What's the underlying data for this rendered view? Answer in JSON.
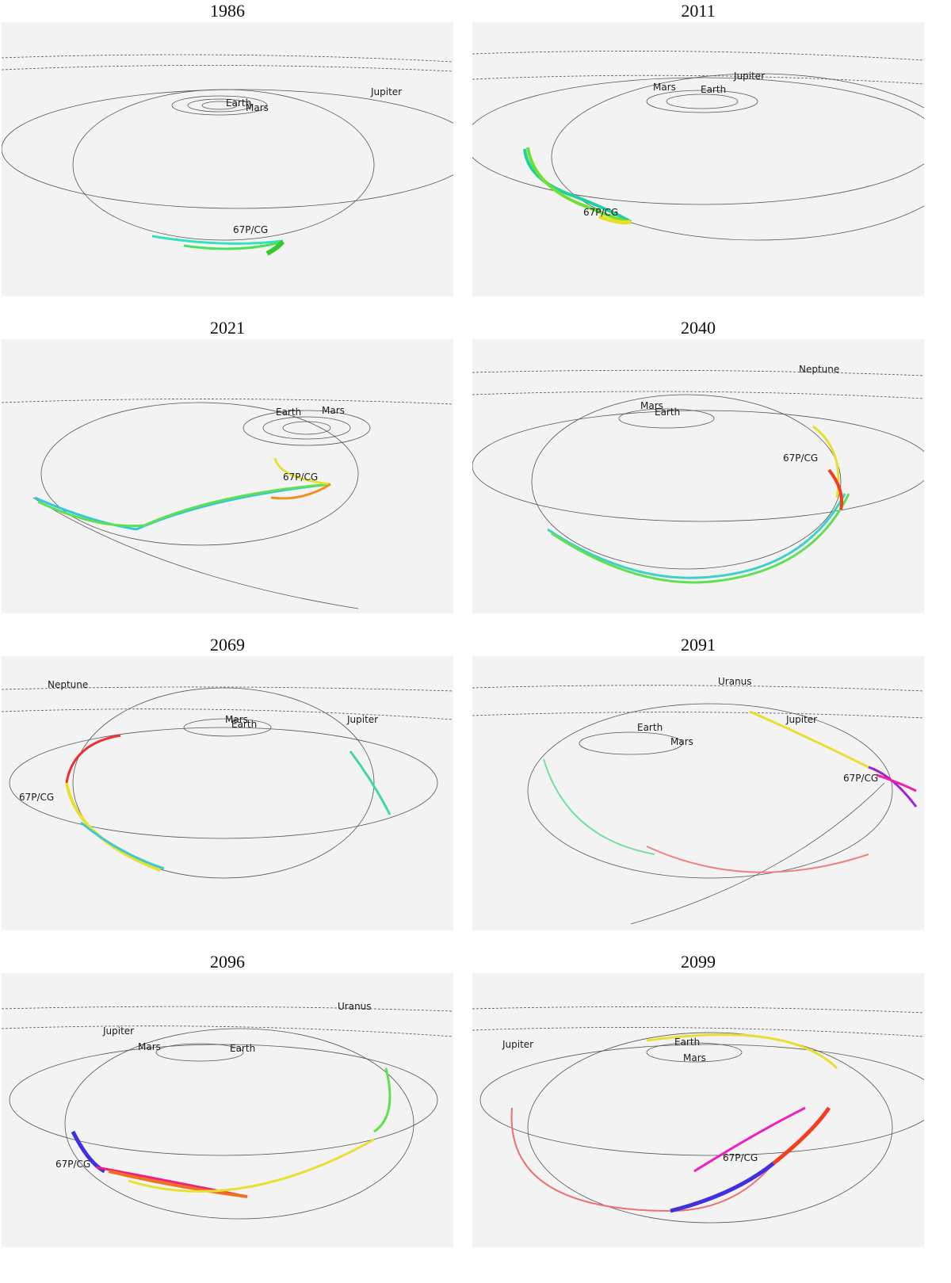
{
  "panels": [
    {
      "year": "1986",
      "labels": [
        "Earth",
        "Mars",
        "Jupiter",
        "67P/CG"
      ]
    },
    {
      "year": "2011",
      "labels": [
        "Jupiter",
        "Mars",
        "Earth",
        "67P/CG"
      ]
    },
    {
      "year": "2021",
      "labels": [
        "Earth",
        "Mars",
        "67P/CG"
      ]
    },
    {
      "year": "2040",
      "labels": [
        "Neptune",
        "Mars",
        "Earth",
        "67P/CG"
      ]
    },
    {
      "year": "2069",
      "labels": [
        "Neptune",
        "Mars",
        "Earth",
        "Jupiter",
        "67P/CG"
      ]
    },
    {
      "year": "2091",
      "labels": [
        "Uranus",
        "Jupiter",
        "Earth",
        "Mars",
        "67P/CG"
      ]
    },
    {
      "year": "2096",
      "labels": [
        "Uranus",
        "Jupiter",
        "Mars",
        "Earth",
        "67P/CG"
      ]
    },
    {
      "year": "2099",
      "labels": [
        "Jupiter",
        "Earth",
        "Mars",
        "67P/CG"
      ]
    }
  ],
  "colors": {
    "orbit": "#555555",
    "comet_label": "#222244",
    "background": "#f3f3f3"
  }
}
